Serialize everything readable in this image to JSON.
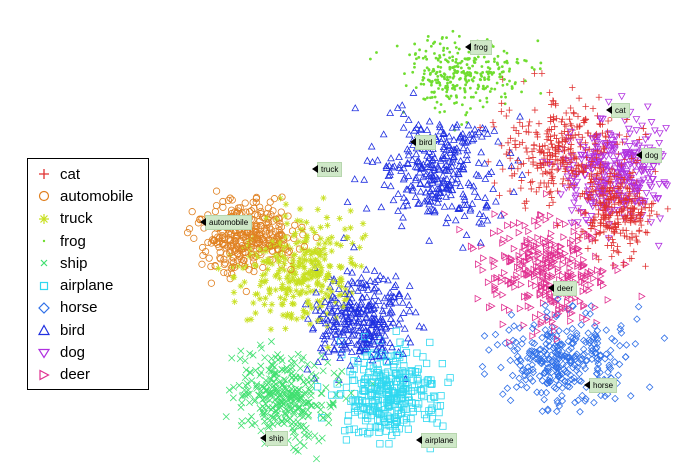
{
  "chart_data": {
    "type": "scatter",
    "title": "",
    "xlabel": "",
    "ylabel": "",
    "legend_position": "left",
    "grid": false,
    "series": [
      {
        "name": "cat",
        "color": "#e03030",
        "marker": "plus",
        "clusters": [
          [
            560,
            150,
            55,
            45
          ],
          [
            615,
            210,
            30,
            40
          ]
        ]
      },
      {
        "name": "automobile",
        "color": "#e08020",
        "marker": "circle",
        "clusters": [
          [
            245,
            235,
            45,
            35
          ]
        ]
      },
      {
        "name": "truck",
        "color": "#c8e020",
        "marker": "star",
        "clusters": [
          [
            300,
            270,
            55,
            45
          ]
        ]
      },
      {
        "name": "frog",
        "color": "#70dd30",
        "marker": "dot",
        "clusters": [
          [
            460,
            75,
            55,
            30
          ]
        ]
      },
      {
        "name": "ship",
        "color": "#40e070",
        "marker": "x",
        "clusters": [
          [
            285,
            395,
            45,
            35
          ]
        ]
      },
      {
        "name": "airplane",
        "color": "#30d8f0",
        "marker": "square",
        "clusters": [
          [
            390,
            395,
            45,
            40
          ]
        ]
      },
      {
        "name": "horse",
        "color": "#3070e8",
        "marker": "diamond",
        "clusters": [
          [
            565,
            360,
            60,
            40
          ]
        ]
      },
      {
        "name": "bird",
        "color": "#2030e0",
        "marker": "triangle-up",
        "clusters": [
          [
            440,
            170,
            55,
            50
          ],
          [
            360,
            320,
            40,
            40
          ]
        ]
      },
      {
        "name": "dog",
        "color": "#b030e0",
        "marker": "triangle-down",
        "clusters": [
          [
            615,
            170,
            50,
            45
          ]
        ]
      },
      {
        "name": "deer",
        "color": "#e03090",
        "marker": "triangle-right",
        "clusters": [
          [
            545,
            270,
            55,
            50
          ]
        ]
      }
    ],
    "annotations": [
      {
        "text": "frog",
        "x": 470,
        "y": 47
      },
      {
        "text": "cat",
        "x": 611,
        "y": 110
      },
      {
        "text": "bird",
        "x": 415,
        "y": 142
      },
      {
        "text": "dog",
        "x": 641,
        "y": 155
      },
      {
        "text": "truck",
        "x": 317,
        "y": 169
      },
      {
        "text": "automobile",
        "x": 205,
        "y": 222
      },
      {
        "text": "deer",
        "x": 553,
        "y": 288
      },
      {
        "text": "horse",
        "x": 589,
        "y": 385
      },
      {
        "text": "ship",
        "x": 265,
        "y": 438
      },
      {
        "text": "airplane",
        "x": 421,
        "y": 440
      }
    ]
  }
}
